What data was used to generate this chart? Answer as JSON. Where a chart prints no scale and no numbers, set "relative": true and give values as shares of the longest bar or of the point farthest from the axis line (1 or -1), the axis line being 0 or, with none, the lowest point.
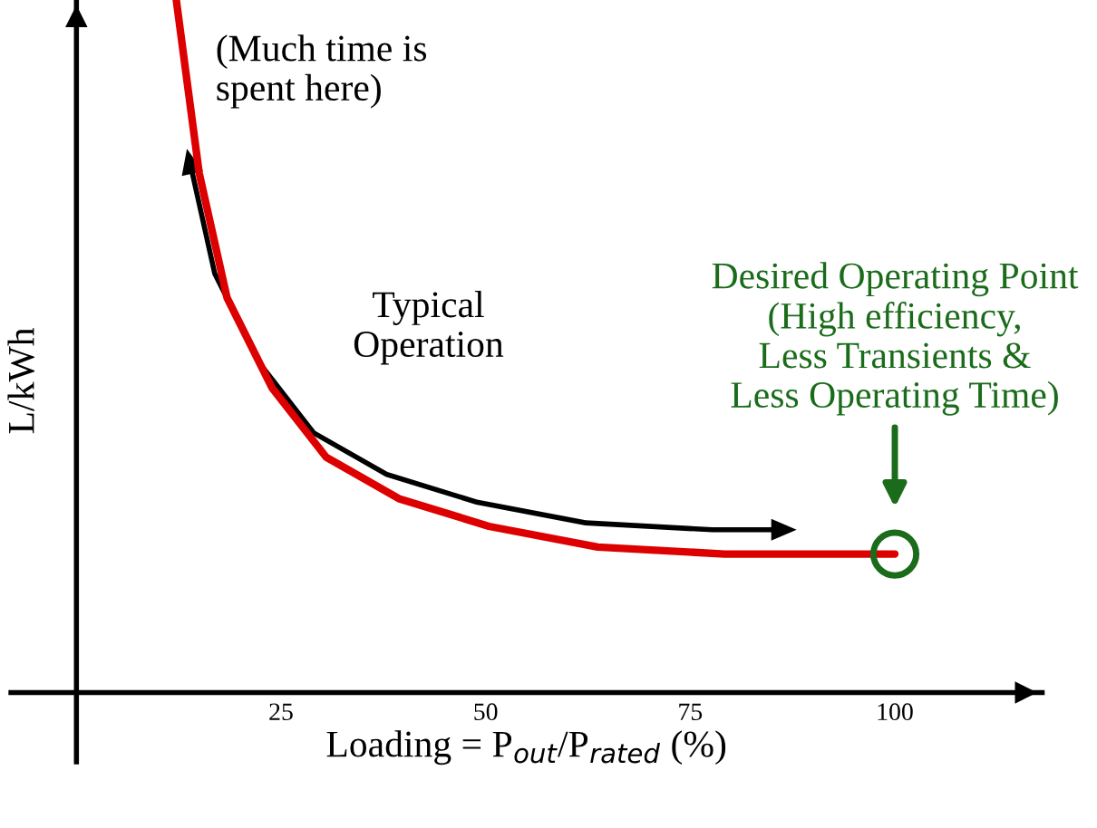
{
  "chart_data": {
    "type": "line",
    "relative": true,
    "xlabel": "Loading = P$_{out}$/P$_{rated}$ (%)",
    "ylabel": "L/kWh",
    "x": [
      12.2,
      15.0,
      18.4,
      23.9,
      30.5,
      39.4,
      50.4,
      63.7,
      79.2,
      100
    ],
    "series": [
      {
        "color": "#dd0000",
        "values": [
          1.0,
          0.75,
          0.57,
          0.44,
          0.34,
          0.28,
          0.24,
          0.21,
          0.2,
          0.2
        ]
      }
    ],
    "xlim": [
      -8,
      118
    ],
    "xticks": [
      25,
      50,
      75,
      100
    ],
    "grid": false,
    "marker": "none",
    "line_style": "solid",
    "annotations": [
      "(Much time is\nspent here)",
      "Typical\nOperation",
      "Desired Operating Point\n(High efficiency,\nLess Transients &\nLess Operating Time)"
    ]
  }
}
